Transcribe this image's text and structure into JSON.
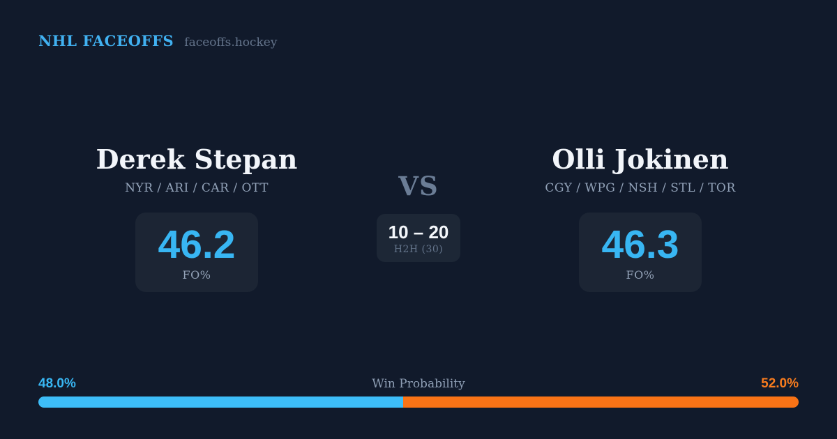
{
  "header": {
    "brand": "NHL FACEOFFS",
    "tagline": "faceoffs.hockey"
  },
  "players": {
    "left": {
      "name": "Derek Stepan",
      "teams": "NYR / ARI / CAR / OTT",
      "stat_value": "46.2",
      "stat_label": "FO%",
      "win_probability_label": "48.0%",
      "accent_color": "#38bdf8"
    },
    "right": {
      "name": "Olli Jokinen",
      "teams": "CGY / WPG / NSH / STL / TOR",
      "stat_value": "46.3",
      "stat_label": "FO%",
      "win_probability_label": "52.0%",
      "accent_color": "#f97316"
    }
  },
  "matchup": {
    "vs_label": "VS",
    "h2h": {
      "record": "10 – 20",
      "label": "H2H (30)"
    }
  },
  "footer": {
    "title": "Win Probability"
  },
  "chart_data": {
    "type": "bar",
    "orientation": "horizontal_stacked",
    "title": "Win Probability",
    "xlim": [
      0,
      100
    ],
    "series": [
      {
        "name": "Derek Stepan",
        "value": 48.0,
        "label": "48.0%",
        "color": "#3dbdf8"
      },
      {
        "name": "Olli Jokinen",
        "value": 52.0,
        "label": "52.0%",
        "color": "#f97316"
      }
    ]
  },
  "colors": {
    "background": "#111a2b",
    "card_background": "#1c2534",
    "accent_blue": "#38bdf8",
    "accent_orange": "#f97316",
    "text_primary": "#f2f5fa",
    "text_muted": "#94a3b8",
    "text_faint": "#64748b"
  }
}
